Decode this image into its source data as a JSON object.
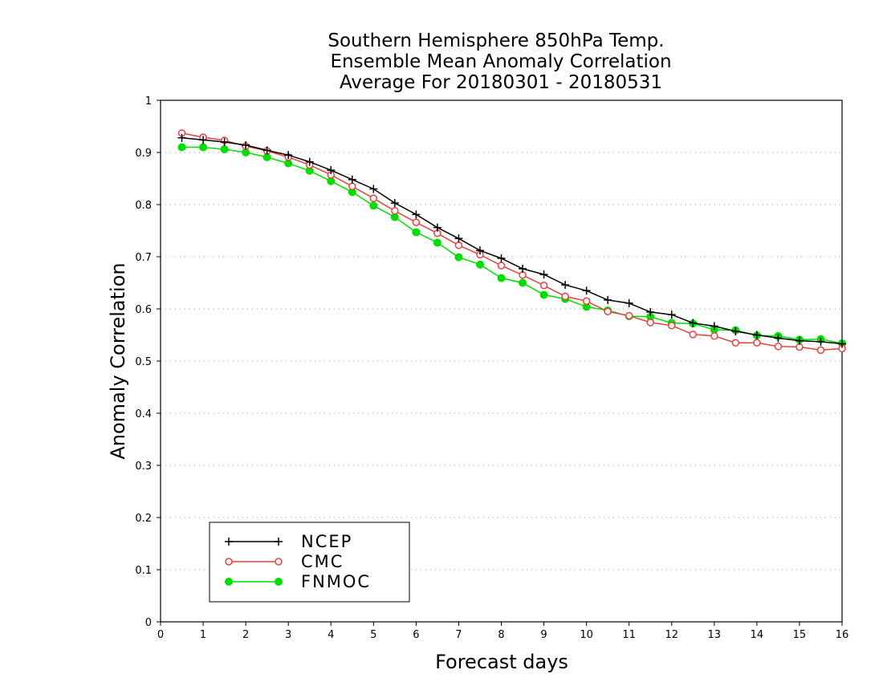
{
  "chart_data": {
    "type": "line",
    "title_lines": [
      "Southern Hemisphere 850hPa Temp.",
      "Ensemble Mean Anomaly Correlation",
      "Average For 20180301 - 20180531"
    ],
    "xlabel": "Forecast days",
    "ylabel": "Anomaly Correlation",
    "xlim": [
      0,
      16
    ],
    "ylim": [
      0,
      1
    ],
    "x_ticks": [
      "0",
      "1",
      "2",
      "3",
      "4",
      "5",
      "6",
      "7",
      "8",
      "9",
      "10",
      "11",
      "12",
      "13",
      "14",
      "15",
      "16"
    ],
    "y_ticks": [
      "0",
      "0.1",
      "0.2",
      "0.3",
      "0.4",
      "0.5",
      "0.6",
      "0.7",
      "0.8",
      "0.9",
      "1"
    ],
    "grid": "dotted horizontal",
    "legend_position": "bottom-left",
    "x": [
      0.5,
      1,
      1.5,
      2,
      2.5,
      3,
      3.5,
      4,
      4.5,
      5,
      5.5,
      6,
      6.5,
      7,
      7.5,
      8,
      8.5,
      9,
      9.5,
      10,
      10.5,
      11,
      11.5,
      12,
      12.5,
      13,
      13.5,
      14,
      14.5,
      15,
      15.5,
      16
    ],
    "series": [
      {
        "name": "NCEP",
        "color": "#000000",
        "marker": "plus",
        "values": [
          0.928,
          0.924,
          0.92,
          0.914,
          0.904,
          0.895,
          0.882,
          0.866,
          0.848,
          0.83,
          0.803,
          0.781,
          0.756,
          0.735,
          0.712,
          0.697,
          0.677,
          0.666,
          0.646,
          0.635,
          0.617,
          0.611,
          0.594,
          0.589,
          0.573,
          0.567,
          0.557,
          0.55,
          0.544,
          0.539,
          0.537,
          0.533
        ]
      },
      {
        "name": "CMC",
        "color": "#e8403a",
        "marker": "open-circle",
        "values": [
          0.937,
          0.929,
          0.923,
          0.912,
          0.903,
          0.891,
          0.876,
          0.857,
          0.835,
          0.812,
          0.788,
          0.766,
          0.745,
          0.722,
          0.704,
          0.683,
          0.665,
          0.645,
          0.624,
          0.615,
          0.595,
          0.587,
          0.574,
          0.568,
          0.551,
          0.548,
          0.535,
          0.535,
          0.528,
          0.527,
          0.521,
          0.524
        ]
      },
      {
        "name": "FNMOC",
        "color": "#00dd00",
        "marker": "filled-circle",
        "values": [
          0.91,
          0.91,
          0.906,
          0.9,
          0.891,
          0.879,
          0.865,
          0.845,
          0.824,
          0.798,
          0.776,
          0.747,
          0.727,
          0.699,
          0.685,
          0.659,
          0.65,
          0.627,
          0.619,
          0.604,
          0.597,
          0.586,
          0.585,
          0.573,
          0.572,
          0.56,
          0.559,
          0.549,
          0.548,
          0.541,
          0.542,
          0.534
        ]
      }
    ]
  }
}
